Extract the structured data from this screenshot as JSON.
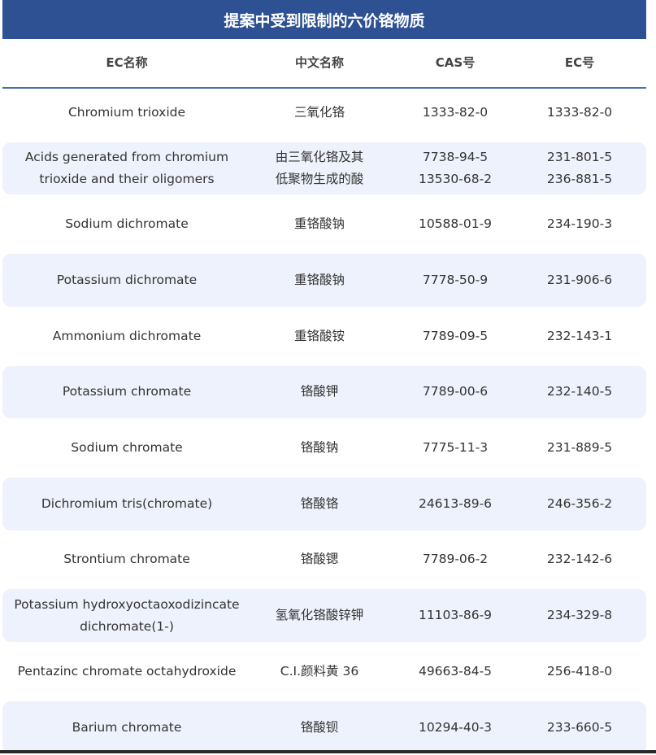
{
  "title": "提案中受到限制的六价铬物质",
  "columns": [
    "EC名称",
    "中文名称",
    "CAS号",
    "EC号"
  ],
  "rows": [
    {
      "ec_name": "Chromium trioxide",
      "cn_name": "三氧化铬",
      "cas": "1333-82-0",
      "ec": "1333-82-0"
    },
    {
      "ec_name": "Acids generated from chromium\ntrioxide and their oligomers",
      "cn_name": "由三氧化铬及其\n低聚物生成的酸",
      "cas": "7738-94-5\n13530-68-2",
      "ec": "231-801-5\n236-881-5"
    },
    {
      "ec_name": "Sodium dichromate",
      "cn_name": "重铬酸钠",
      "cas": "10588-01-9",
      "ec": "234-190-3"
    },
    {
      "ec_name": "Potassium dichromate",
      "cn_name": "重铬酸钠",
      "cas": "7778-50-9",
      "ec": "231-906-6"
    },
    {
      "ec_name": "Ammonium dichromate",
      "cn_name": "重铬酸铵",
      "cas": "7789-09-5",
      "ec": "232-143-1"
    },
    {
      "ec_name": "Potassium chromate",
      "cn_name": "铬酸钾",
      "cas": "7789-00-6",
      "ec": "232-140-5"
    },
    {
      "ec_name": "Sodium chromate",
      "cn_name": "铬酸钠",
      "cas": "7775-11-3",
      "ec": "231-889-5"
    },
    {
      "ec_name": "Dichromium tris(chromate)",
      "cn_name": "铬酸铬",
      "cas": "24613-89-6",
      "ec": "246-356-2"
    },
    {
      "ec_name": "Strontium chromate",
      "cn_name": "铬酸锶",
      "cas": "7789-06-2",
      "ec": "232-142-6"
    },
    {
      "ec_name": "Potassium hydroxyoctaoxodizincate\ndichromate(1-)",
      "cn_name": "氢氧化铬酸锌钾",
      "cas": "11103-86-9",
      "ec": "234-329-8"
    },
    {
      "ec_name": "Pentazinc chromate octahydroxide",
      "cn_name": "C.I.颜料黄 36",
      "cas": "49663-84-5",
      "ec": "256-418-0"
    },
    {
      "ec_name": "Barium chromate",
      "cn_name": "铬酸钡",
      "cas": "10294-40-3",
      "ec": "233-660-5"
    }
  ],
  "colors": {
    "header": "#2d5193",
    "row_shade": "#eef2fc",
    "text": "#333333"
  }
}
